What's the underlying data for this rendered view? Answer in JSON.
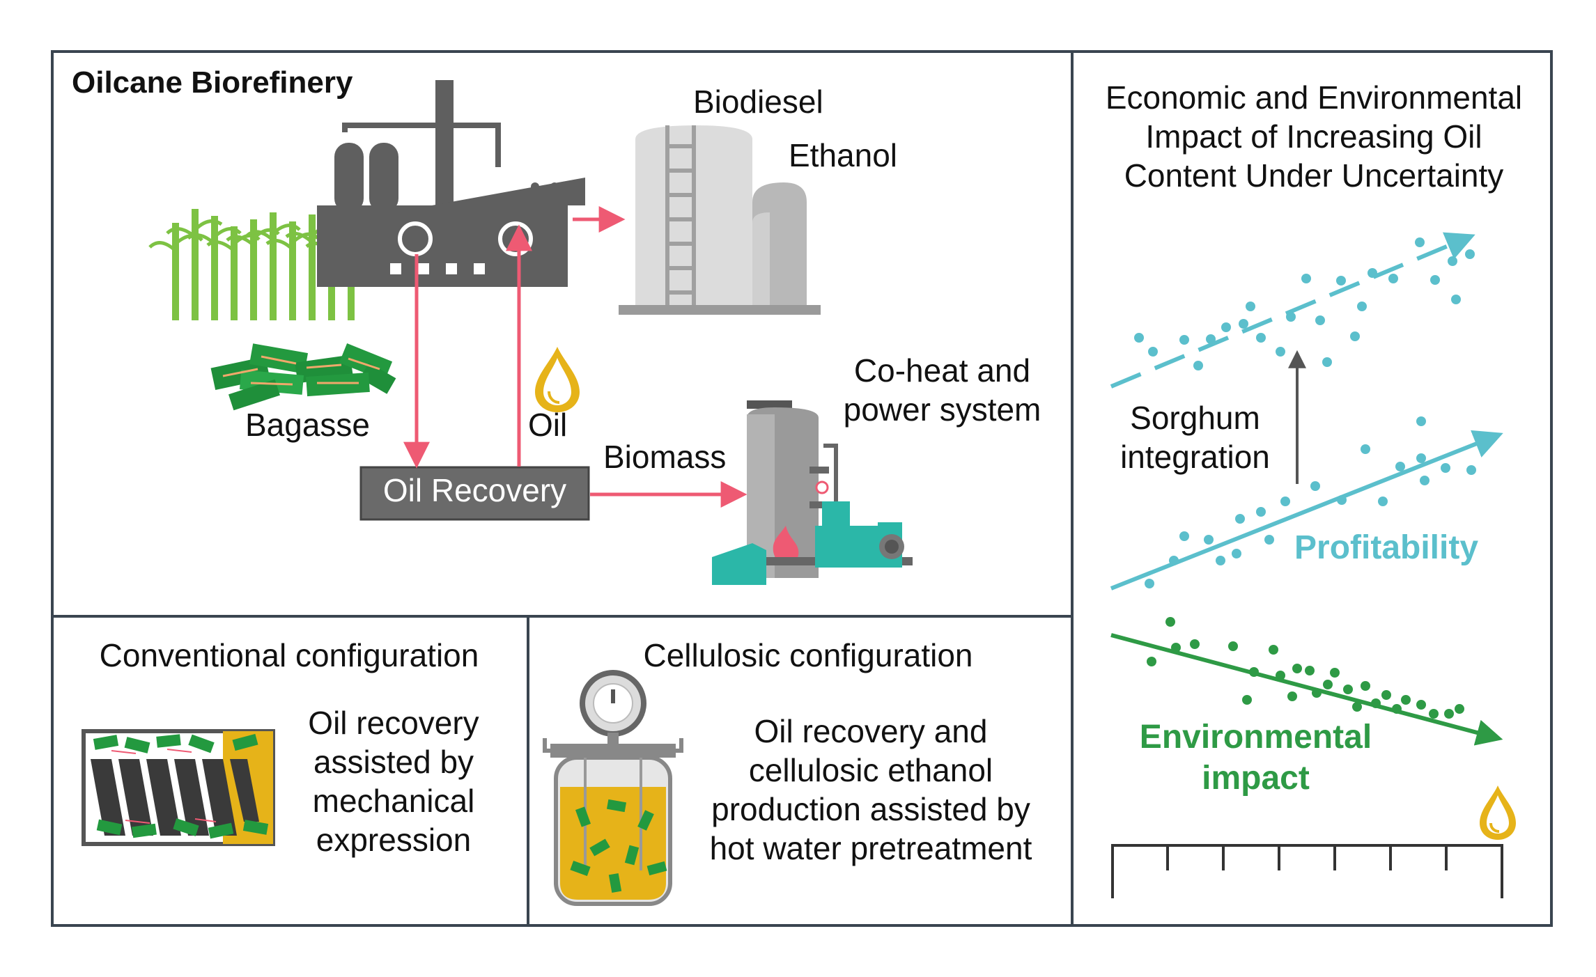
{
  "top_panel": {
    "title": "Oilcane Biorefinery",
    "products": [
      "Biodiesel",
      "Ethanol"
    ],
    "chp": [
      "Co-heat and",
      "power system"
    ],
    "bagasse": "Bagasse",
    "oil": "Oil",
    "biomass": "Biomass",
    "oil_recovery": "Oil Recovery"
  },
  "right_panel": {
    "title": [
      "Economic and Environmental",
      "Impact of Increasing Oil",
      "Content Under Uncertainty"
    ],
    "sorghum": [
      "Sorghum",
      "integration"
    ],
    "profitability": "Profitability",
    "environmental": [
      "Environmental",
      "impact"
    ]
  },
  "conventional": {
    "title": "Conventional configuration",
    "desc": [
      "Oil recovery",
      "assisted by",
      "mechanical",
      "expression"
    ]
  },
  "cellulosic": {
    "title": "Cellulosic configuration",
    "desc": [
      "Oil recovery and",
      "cellulosic ethanol",
      "production assisted by",
      "hot water pretreatment"
    ]
  },
  "colors": {
    "arrow": "#ee5a73",
    "factory": "#5f5f5f",
    "cane": "#7dc243",
    "teal": "#5bbfcc",
    "green": "#2e9a45",
    "oil_gold": "#e6b319",
    "border": "#3a4550"
  }
}
